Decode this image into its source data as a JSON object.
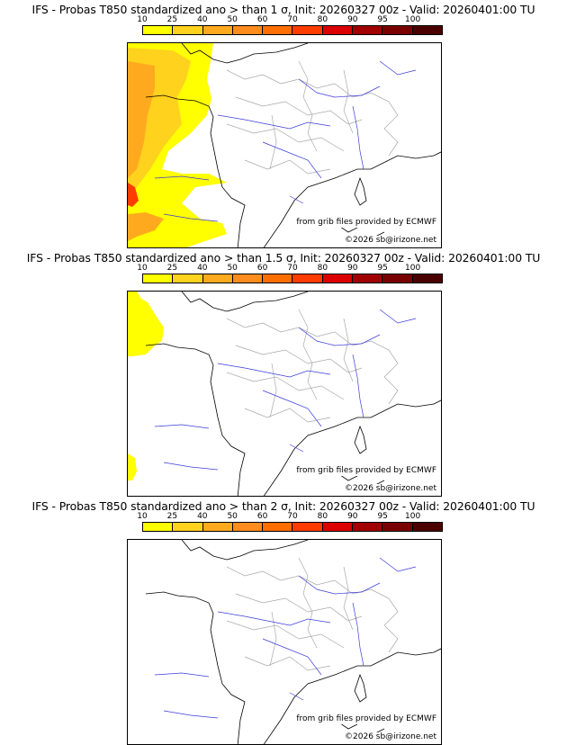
{
  "colors": [
    "#ffff00",
    "#ffd21e",
    "#ffaa1e",
    "#ff8c1e",
    "#ff6e00",
    "#ff3c00",
    "#dc0000",
    "#a00000",
    "#780000",
    "#4b0000"
  ],
  "legend_ticks": [
    "10",
    "25",
    "40",
    "50",
    "60",
    "70",
    "80",
    "90",
    "95",
    "100"
  ],
  "source_note": "from grib files provided by ECMWF",
  "credit": "©2026 sb@irizone.net",
  "panels": [
    {
      "title": "IFS - Probas T850  standardized ano > than 1 σ, Init: 20260327 00z - Valid: 20260401:00 TU"
    },
    {
      "title": "IFS - Probas T850  standardized ano > than 1.5 σ, Init: 20260327 00z - Valid: 20260401:00 TU"
    },
    {
      "title": "IFS - Probas T850  standardized ano > than 2 σ, Init: 20260327 00z - Valid: 20260401:00 TU"
    }
  ]
}
